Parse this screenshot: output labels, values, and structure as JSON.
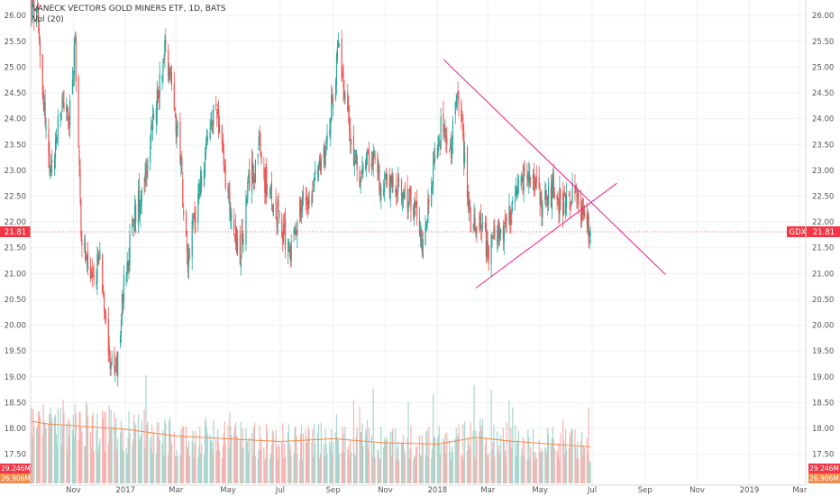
{
  "legend": {
    "symbol_name": "VanEck Vectors Gold Miners ETF, 1D, BATS",
    "symbol_text": "VANECK VECTORS GOLD MINERS ETF, 1D, BATS",
    "volume_text": "Vol (20)"
  },
  "colors": {
    "up": "#26a69a",
    "down": "#ef5350",
    "up_volume": "#a7d7cf",
    "down_volume": "#f7b3b1",
    "trendline": "#e91e8c",
    "price_line": "#f23645",
    "volume_ma": "#f08c4a",
    "grid": "#eef0f3",
    "axis_text": "#555555"
  },
  "price_axis": {
    "min": 16.9,
    "max": 26.3,
    "ticks": [
      "17.50",
      "18.00",
      "18.50",
      "19.00",
      "19.50",
      "20.00",
      "20.50",
      "21.00",
      "21.50",
      "22.00",
      "22.50",
      "23.00",
      "23.50",
      "24.00",
      "24.50",
      "25.00",
      "25.50",
      "26.00"
    ]
  },
  "time_axis": {
    "start": "2016-09-12",
    "end": "2019-03-08",
    "ticks": [
      {
        "date": "2016-11-01",
        "label": "Nov"
      },
      {
        "date": "2017-01-01",
        "label": "2017"
      },
      {
        "date": "2017-03-01",
        "label": "Mar"
      },
      {
        "date": "2017-05-01",
        "label": "May"
      },
      {
        "date": "2017-07-01",
        "label": "Jul"
      },
      {
        "date": "2017-09-01",
        "label": "Sep"
      },
      {
        "date": "2017-11-01",
        "label": "Nov"
      },
      {
        "date": "2018-01-01",
        "label": "2018"
      },
      {
        "date": "2018-03-01",
        "label": "Mar"
      },
      {
        "date": "2018-05-01",
        "label": "May"
      },
      {
        "date": "2018-07-01",
        "label": "Jul"
      },
      {
        "date": "2018-09-01",
        "label": "Sep"
      },
      {
        "date": "2018-11-01",
        "label": "Nov"
      },
      {
        "date": "2019-01-01",
        "label": "2019"
      },
      {
        "date": "2019-03-01",
        "label": "Mar"
      }
    ]
  },
  "price_labels": {
    "last_price": "21.81",
    "ticker_tag": "GDX",
    "volume_last": "29.246M",
    "volume_ma": "26.906M"
  },
  "chart_data": {
    "type": "candlestick",
    "symbol": "GDX",
    "interval": "1D",
    "exchange": "BATS",
    "last_close": 21.81,
    "anchors": [
      {
        "date": "2016-09-12",
        "close": 26.2
      },
      {
        "date": "2016-09-20",
        "close": 25.9
      },
      {
        "date": "2016-09-30",
        "close": 23.8
      },
      {
        "date": "2016-10-05",
        "close": 22.8
      },
      {
        "date": "2016-10-12",
        "close": 23.6
      },
      {
        "date": "2016-10-20",
        "close": 24.4
      },
      {
        "date": "2016-10-27",
        "close": 23.9
      },
      {
        "date": "2016-11-03",
        "close": 25.5
      },
      {
        "date": "2016-11-10",
        "close": 21.9
      },
      {
        "date": "2016-11-15",
        "close": 21.3
      },
      {
        "date": "2016-11-24",
        "close": 20.7
      },
      {
        "date": "2016-12-02",
        "close": 21.4
      },
      {
        "date": "2016-12-15",
        "close": 19.2
      },
      {
        "date": "2016-12-22",
        "close": 19.1
      },
      {
        "date": "2016-12-30",
        "close": 20.8
      },
      {
        "date": "2017-01-10",
        "close": 22.0
      },
      {
        "date": "2017-01-25",
        "close": 23.0
      },
      {
        "date": "2017-02-09",
        "close": 24.6
      },
      {
        "date": "2017-02-16",
        "close": 25.4
      },
      {
        "date": "2017-02-24",
        "close": 24.8
      },
      {
        "date": "2017-03-08",
        "close": 22.8
      },
      {
        "date": "2017-03-15",
        "close": 21.3
      },
      {
        "date": "2017-03-23",
        "close": 22.1
      },
      {
        "date": "2017-04-07",
        "close": 23.5
      },
      {
        "date": "2017-04-18",
        "close": 24.3
      },
      {
        "date": "2017-04-26",
        "close": 23.0
      },
      {
        "date": "2017-05-08",
        "close": 21.9
      },
      {
        "date": "2017-05-15",
        "close": 21.3
      },
      {
        "date": "2017-05-26",
        "close": 22.8
      },
      {
        "date": "2017-06-06",
        "close": 23.4
      },
      {
        "date": "2017-06-16",
        "close": 22.6
      },
      {
        "date": "2017-06-29",
        "close": 22.1
      },
      {
        "date": "2017-07-12",
        "close": 21.4
      },
      {
        "date": "2017-07-24",
        "close": 22.3
      },
      {
        "date": "2017-08-03",
        "close": 22.5
      },
      {
        "date": "2017-08-15",
        "close": 23.0
      },
      {
        "date": "2017-08-25",
        "close": 23.6
      },
      {
        "date": "2017-09-07",
        "close": 25.3
      },
      {
        "date": "2017-09-15",
        "close": 24.4
      },
      {
        "date": "2017-09-25",
        "close": 23.3
      },
      {
        "date": "2017-10-05",
        "close": 22.8
      },
      {
        "date": "2017-10-16",
        "close": 23.4
      },
      {
        "date": "2017-10-27",
        "close": 22.7
      },
      {
        "date": "2017-11-10",
        "close": 22.7
      },
      {
        "date": "2017-11-24",
        "close": 22.5
      },
      {
        "date": "2017-12-05",
        "close": 22.3
      },
      {
        "date": "2017-12-13",
        "close": 21.6
      },
      {
        "date": "2017-12-21",
        "close": 22.3
      },
      {
        "date": "2018-01-05",
        "close": 23.8
      },
      {
        "date": "2018-01-16",
        "close": 23.2
      },
      {
        "date": "2018-01-25",
        "close": 24.7
      },
      {
        "date": "2018-02-02",
        "close": 23.2
      },
      {
        "date": "2018-02-09",
        "close": 21.9
      },
      {
        "date": "2018-02-20",
        "close": 22.2
      },
      {
        "date": "2018-03-01",
        "close": 21.4
      },
      {
        "date": "2018-03-14",
        "close": 21.8
      },
      {
        "date": "2018-03-28",
        "close": 22.1
      },
      {
        "date": "2018-04-11",
        "close": 22.8
      },
      {
        "date": "2018-04-20",
        "close": 22.9
      },
      {
        "date": "2018-05-02",
        "close": 22.3
      },
      {
        "date": "2018-05-16",
        "close": 22.6
      },
      {
        "date": "2018-05-29",
        "close": 22.3
      },
      {
        "date": "2018-06-08",
        "close": 22.6
      },
      {
        "date": "2018-06-19",
        "close": 22.2
      },
      {
        "date": "2018-06-25",
        "close": 21.9
      },
      {
        "date": "2018-06-29",
        "close": 21.81
      }
    ],
    "volume_anchors": [
      {
        "date": "2016-09-12",
        "millions": 46
      },
      {
        "date": "2016-10-01",
        "millions": 44
      },
      {
        "date": "2016-11-15",
        "millions": 42
      },
      {
        "date": "2017-01-01",
        "millions": 40
      },
      {
        "date": "2017-03-01",
        "millions": 35
      },
      {
        "date": "2017-05-01",
        "millions": 33
      },
      {
        "date": "2017-07-01",
        "millions": 31
      },
      {
        "date": "2017-09-01",
        "millions": 33
      },
      {
        "date": "2017-11-01",
        "millions": 30
      },
      {
        "date": "2018-01-01",
        "millions": 29
      },
      {
        "date": "2018-02-15",
        "millions": 34
      },
      {
        "date": "2018-04-01",
        "millions": 31
      },
      {
        "date": "2018-06-29",
        "millions": 27
      }
    ],
    "volume_max_millions": 80,
    "trendlines": [
      {
        "name": "descending resistance",
        "from": {
          "date": "2018-01-08",
          "price": 25.15
        },
        "to": {
          "date": "2018-09-25",
          "price": 20.98
        }
      },
      {
        "name": "ascending support",
        "from": {
          "date": "2018-02-15",
          "price": 20.72
        },
        "to": {
          "date": "2018-07-30",
          "price": 22.75
        }
      }
    ]
  }
}
